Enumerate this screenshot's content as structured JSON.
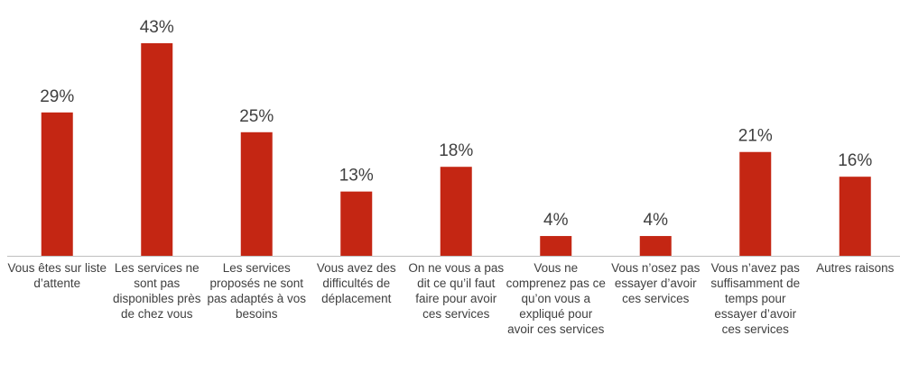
{
  "chart_data": {
    "type": "bar",
    "categories": [
      "Vous êtes sur liste d’attente",
      "Les services ne sont pas disponibles près de chez vous",
      "Les services proposés ne sont pas adaptés à vos besoins",
      "Vous avez des difficultés de déplacement",
      "On ne vous a pas dit ce qu’il faut faire pour avoir ces services",
      "Vous ne comprenez pas ce qu’on vous a expliqué pour avoir ces services",
      "Vous n’osez pas essayer d’avoir ces services",
      "Vous n’avez pas suffisamment de temps pour essayer d’avoir ces services",
      "Autres raisons"
    ],
    "values": [
      29,
      43,
      25,
      13,
      18,
      4,
      4,
      21,
      16
    ],
    "value_labels": [
      "29%",
      "43%",
      "25%",
      "13%",
      "18%",
      "4%",
      "4%",
      "21%",
      "16%"
    ],
    "color": "#c42613"
  }
}
